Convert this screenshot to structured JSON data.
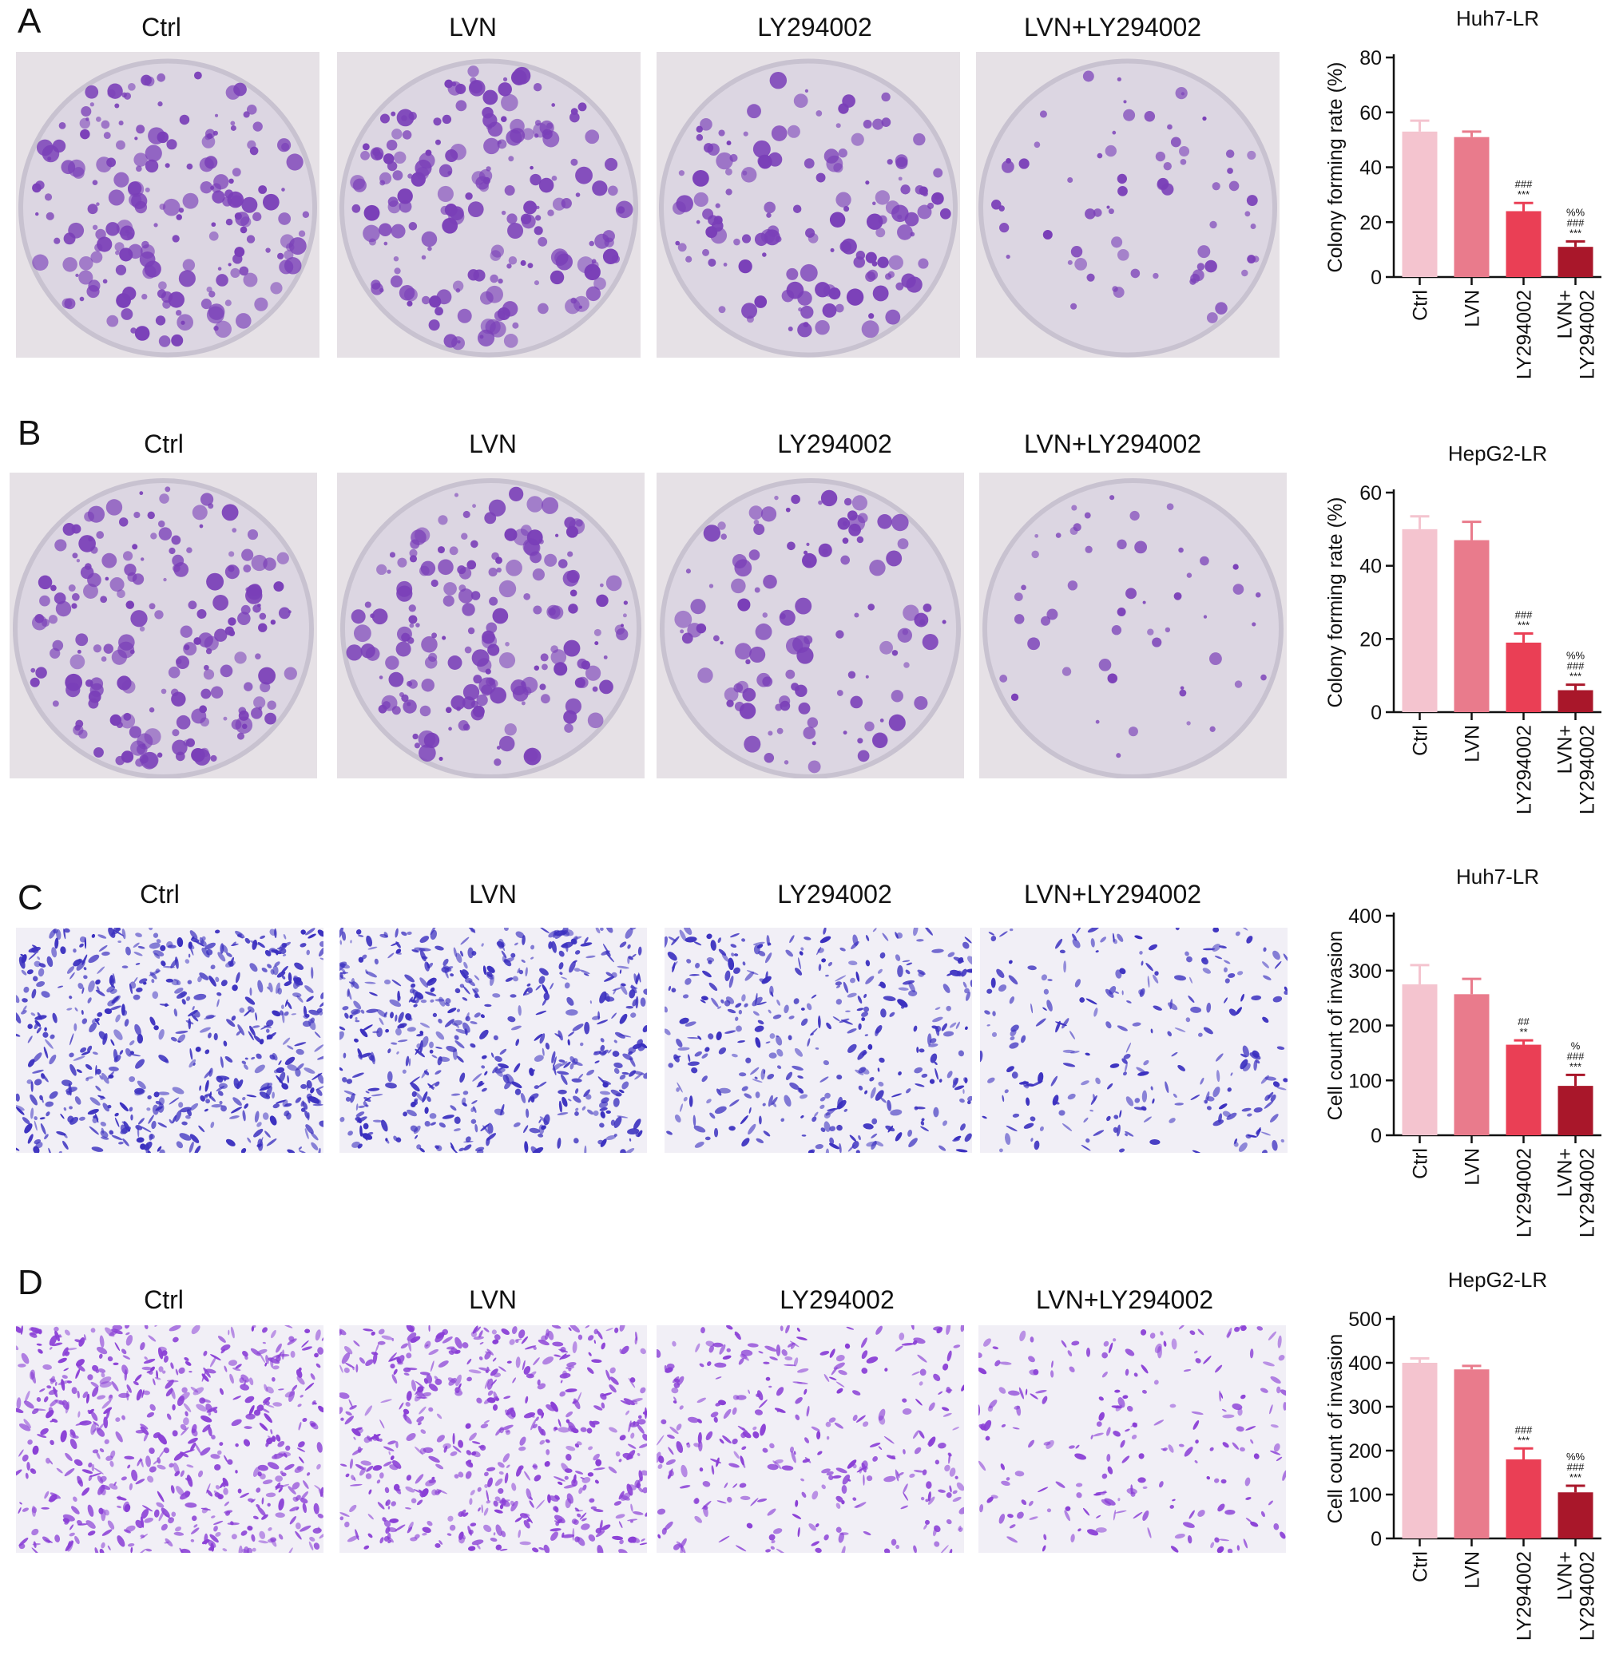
{
  "figure": {
    "conditions": [
      "Ctrl",
      "LVN",
      "LY294002",
      "LVN+LY294002"
    ],
    "panels": [
      {
        "letter": "A",
        "assay": "colony",
        "cell_line": "Huh7-LR",
        "density": [
          1.0,
          1.0,
          0.7,
          0.25
        ]
      },
      {
        "letter": "B",
        "assay": "colony",
        "cell_line": "HepG2-LR",
        "density": [
          1.0,
          0.95,
          0.55,
          0.15
        ]
      },
      {
        "letter": "C",
        "assay": "invasion",
        "cell_line": "Huh7-LR",
        "density": [
          1.0,
          0.95,
          0.6,
          0.35
        ]
      },
      {
        "letter": "D",
        "assay": "invasion",
        "cell_line": "HepG2-LR",
        "density": [
          1.0,
          0.95,
          0.5,
          0.3
        ]
      }
    ],
    "colors": {
      "plate_bg": "#ece7ec",
      "colony": "#7a3fb8",
      "invasion_stain": "#3a2fbf",
      "invasion_stain_d": "#8a3fd6",
      "bar_ctrl": "#f4c4cf",
      "bar_lvn": "#e97b8c",
      "bar_ly": "#ea3f55",
      "bar_combo": "#a9172a"
    }
  },
  "chart_data": [
    {
      "type": "bar",
      "title": "Huh7-LR",
      "ylabel": "Colony forming rate (%)",
      "categories": [
        "Ctrl",
        "LVN",
        "LY294002",
        "LVN+\nLY294002"
      ],
      "values": [
        53,
        51,
        24,
        11
      ],
      "errors": [
        4,
        2,
        3,
        2
      ],
      "ylim": [
        0,
        80
      ],
      "yticks": [
        0,
        20,
        40,
        60,
        80
      ],
      "annotations": [
        [],
        [],
        [
          "###",
          "***"
        ],
        [
          "%%",
          "###",
          "***"
        ]
      ]
    },
    {
      "type": "bar",
      "title": "HepG2-LR",
      "ylabel": "Colony forming rate (%)",
      "categories": [
        "Ctrl",
        "LVN",
        "LY294002",
        "LVN+\nLY294002"
      ],
      "values": [
        50,
        47,
        19,
        6
      ],
      "errors": [
        3.5,
        5,
        2.5,
        1.5
      ],
      "ylim": [
        0,
        60
      ],
      "yticks": [
        0,
        20,
        40,
        60
      ],
      "annotations": [
        [],
        [],
        [
          "###",
          "***"
        ],
        [
          "%%",
          "###",
          "***"
        ]
      ]
    },
    {
      "type": "bar",
      "title": "Huh7-LR",
      "ylabel": "Cell count of invasion",
      "categories": [
        "Ctrl",
        "LVN",
        "LY294002",
        "LVN+\nLY294002"
      ],
      "values": [
        275,
        257,
        165,
        90
      ],
      "errors": [
        35,
        28,
        8,
        20
      ],
      "ylim": [
        0,
        400
      ],
      "yticks": [
        0,
        100,
        200,
        300,
        400
      ],
      "annotations": [
        [],
        [],
        [
          "##",
          "**"
        ],
        [
          "%",
          "###",
          "***"
        ]
      ]
    },
    {
      "type": "bar",
      "title": "HepG2-LR",
      "ylabel": "Cell count of invasion",
      "categories": [
        "Ctrl",
        "LVN",
        "LY294002",
        "LVN+\nLY294002"
      ],
      "values": [
        400,
        385,
        180,
        105
      ],
      "errors": [
        10,
        8,
        25,
        15
      ],
      "ylim": [
        0,
        500
      ],
      "yticks": [
        0,
        100,
        200,
        300,
        400,
        500
      ],
      "annotations": [
        [],
        [],
        [
          "###",
          "***"
        ],
        [
          "%%",
          "###",
          "***"
        ]
      ]
    }
  ]
}
